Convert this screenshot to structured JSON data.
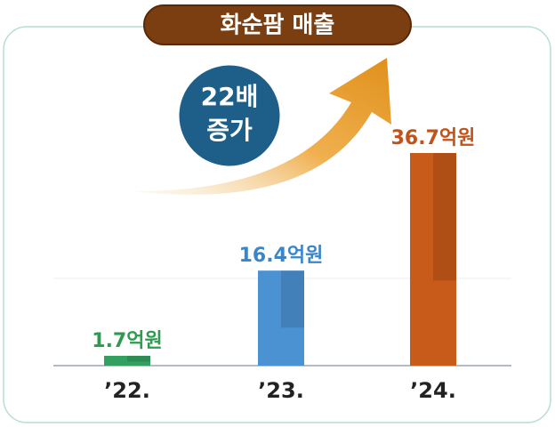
{
  "chart_data": {
    "type": "bar",
    "title": "화순팜 매출",
    "annotation": [
      "22배",
      "증가"
    ],
    "categories": [
      "’22.",
      "’23.",
      "’24."
    ],
    "values": [
      1.7,
      16.4,
      36.7
    ],
    "value_labels": [
      "1.7억원",
      "16.4억원",
      "36.7억원"
    ],
    "colors": [
      "#33a060",
      "#4a92d2",
      "#c85a1a"
    ],
    "label_colors": [
      "#2e9a50",
      "#3a86c8",
      "#c0521a"
    ]
  }
}
